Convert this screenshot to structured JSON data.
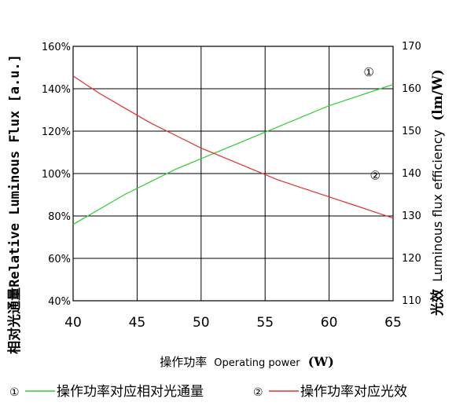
{
  "chart_data": {
    "type": "line",
    "ylabel_left": "相对光通量Relative Luminous Flux [a.u.]",
    "ylabel_right_cn": "光效",
    "ylabel_right_en": "Luminous flux efficiency",
    "ylabel_right_unit": "(lm/W)",
    "xlabel_cn": "操作功率",
    "xlabel_en": "Operating power",
    "xlabel_unit": "(W)",
    "xlim": [
      40,
      65
    ],
    "ylim_left": [
      40,
      160
    ],
    "ylim_right": [
      110,
      170
    ],
    "x_ticks": [
      "40",
      "45",
      "50",
      "55",
      "60",
      "65"
    ],
    "y_left_ticks": [
      "40%",
      "60%",
      "80%",
      "100%",
      "120%",
      "140%",
      "160%"
    ],
    "y_right_ticks": [
      "110",
      "120",
      "130",
      "140",
      "150",
      "160",
      "170"
    ],
    "grid": true,
    "series": [
      {
        "marker": "①",
        "axis": "left",
        "color": "#33cc33",
        "x": [
          40,
          42,
          44,
          46,
          48,
          50,
          52,
          54,
          56,
          58,
          60,
          62,
          64,
          65
        ],
        "y": [
          76,
          83,
          90,
          96,
          102,
          107,
          112,
          117,
          122,
          127,
          132,
          136,
          140,
          142
        ]
      },
      {
        "marker": "②",
        "axis": "right",
        "color": "#e03030",
        "x": [
          40,
          42,
          44,
          46,
          48,
          50,
          52,
          54,
          56,
          58,
          60,
          62,
          64,
          65
        ],
        "y": [
          163,
          159,
          155.5,
          152,
          149,
          146,
          143.5,
          141,
          138.5,
          136.5,
          134.5,
          132.5,
          130.5,
          129.5
        ]
      }
    ],
    "legend": [
      {
        "marker": "①",
        "label": "操作功率对应相对光通量",
        "color": "#33cc33"
      },
      {
        "marker": "②",
        "label": "操作功率对应光效",
        "color": "#e03030"
      }
    ]
  }
}
